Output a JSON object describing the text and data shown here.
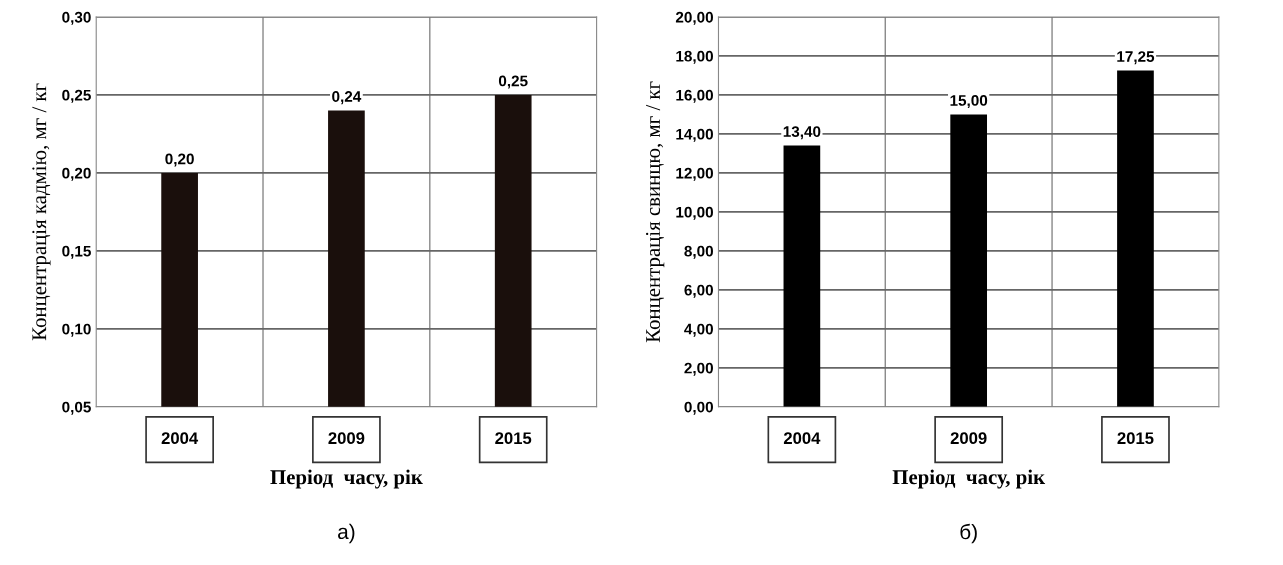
{
  "chart_data": [
    {
      "type": "bar",
      "categories": [
        "2004",
        "2009",
        "2015"
      ],
      "values": [
        0.2,
        0.24,
        0.25
      ],
      "color": "#1a0f0c",
      "value_labels": [
        "0,20",
        "0,24",
        "0,25"
      ],
      "ylim": [
        0.05,
        0.3
      ],
      "yticks": [
        {
          "value": 0.05,
          "label": "0,05"
        },
        {
          "value": 0.1,
          "label": "0,10"
        },
        {
          "value": 0.15,
          "label": "0,15"
        },
        {
          "value": 0.2,
          "label": "0,20"
        },
        {
          "value": 0.25,
          "label": "0,25"
        },
        {
          "value": 0.3,
          "label": "0,30"
        }
      ],
      "xlabel": "Період  часу, рік",
      "ylabel": "Концентрація кадмію, мг / кг",
      "annotations": [
        "а)"
      ],
      "grid": true
    },
    {
      "type": "bar",
      "categories": [
        "2004",
        "2009",
        "2015"
      ],
      "values": [
        13.4,
        15.0,
        17.25
      ],
      "color": "#000000",
      "value_labels": [
        "13,40",
        "15,00",
        "17,25"
      ],
      "ylim": [
        0,
        20
      ],
      "yticks": [
        {
          "value": 0,
          "label": "0,00"
        },
        {
          "value": 2,
          "label": "2,00"
        },
        {
          "value": 4,
          "label": "4,00"
        },
        {
          "value": 6,
          "label": "6,00"
        },
        {
          "value": 8,
          "label": "8,00"
        },
        {
          "value": 10,
          "label": "10,00"
        },
        {
          "value": 12,
          "label": "12,00"
        },
        {
          "value": 14,
          "label": "14,00"
        },
        {
          "value": 16,
          "label": "16,00"
        },
        {
          "value": 18,
          "label": "18,00"
        },
        {
          "value": 20,
          "label": "20,00"
        }
      ],
      "xlabel": "Період  часу, рік",
      "ylabel": "Концентрація свинцю, мг / кг",
      "annotations": [
        "б)"
      ],
      "grid": true
    }
  ]
}
